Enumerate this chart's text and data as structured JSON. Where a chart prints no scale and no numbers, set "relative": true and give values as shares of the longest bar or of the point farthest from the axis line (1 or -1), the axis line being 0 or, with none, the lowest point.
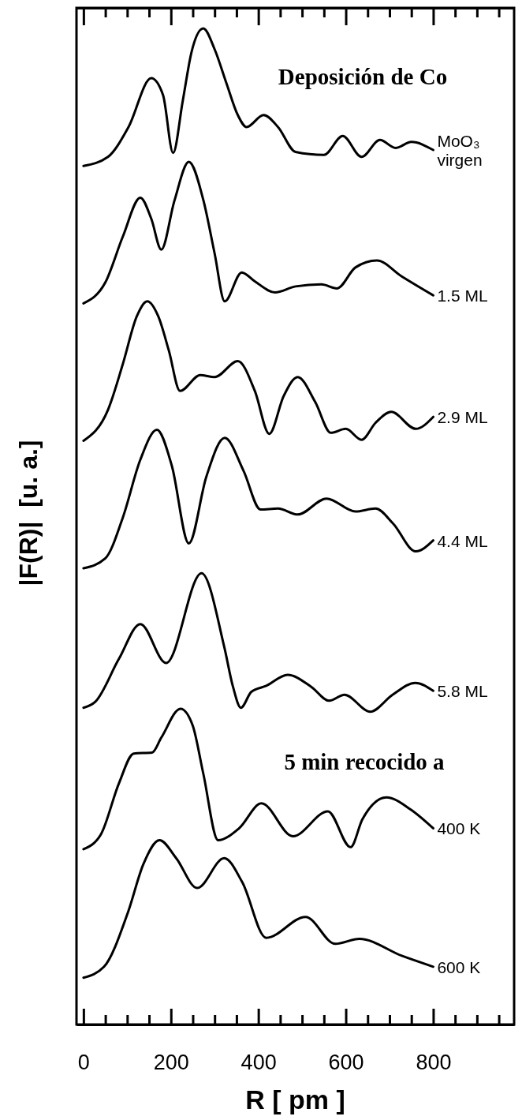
{
  "chart_data": {
    "type": "line",
    "relative": true,
    "xlabel": "R [ pm ]",
    "ylabel": "|F(R)|  [u. a.]",
    "xlim": [
      -16,
      985
    ],
    "xticks": [
      0,
      {
        "value": 50,
        "label": null
      },
      {
        "value": 100,
        "label": null
      },
      {
        "value": 150,
        "label": null
      },
      200,
      {
        "value": 250,
        "label": null
      },
      {
        "value": 300,
        "label": null
      },
      {
        "value": 350,
        "label": null
      },
      400,
      {
        "value": 450,
        "label": null
      },
      {
        "value": 500,
        "label": null
      },
      {
        "value": 550,
        "label": null
      },
      600,
      {
        "value": 650,
        "label": null
      },
      {
        "value": 700,
        "label": null
      },
      {
        "value": 750,
        "label": null
      },
      800,
      {
        "value": 850,
        "label": null
      },
      {
        "value": 900,
        "label": null
      },
      {
        "value": 950,
        "label": null
      }
    ],
    "legend": false,
    "marker": "none",
    "line_style": "solid",
    "grid": false,
    "annotations": [
      "Deposición de Co",
      "5 min recocido a"
    ],
    "series": [
      {
        "name": "MoO₃ virgen",
        "color": "#000000",
        "x": [
          0,
          56,
          103,
          155,
          182,
          205,
          227,
          247,
          274,
          300,
          327,
          353,
          373,
          412,
          445,
          485,
          550,
          593,
          636,
          678,
          714,
          750,
          800
        ],
        "values": [
          0.862,
          0.871,
          0.901,
          0.95,
          0.933,
          0.875,
          0.927,
          0.976,
          1,
          0.979,
          0.945,
          0.913,
          0.901,
          0.913,
          0.901,
          0.876,
          0.873,
          0.892,
          0.871,
          0.888,
          0.88,
          0.886,
          0.878
        ]
      },
      {
        "name": "1.5 ML",
        "color": "#000000",
        "x": [
          0,
          50,
          90,
          130,
          155,
          178,
          208,
          241,
          274,
          300,
          323,
          362,
          392,
          438,
          485,
          544,
          580,
          622,
          671,
          728,
          800
        ],
        "values": [
          0.724,
          0.745,
          0.791,
          0.83,
          0.809,
          0.778,
          0.827,
          0.866,
          0.828,
          0.774,
          0.726,
          0.755,
          0.746,
          0.735,
          0.741,
          0.743,
          0.739,
          0.76,
          0.767,
          0.751,
          0.732
        ]
      },
      {
        "name": "2.9 ML",
        "color": "#000000",
        "x": [
          0,
          56,
          90,
          122,
          146,
          171,
          195,
          221,
          267,
          300,
          353,
          392,
          425,
          458,
          490,
          530,
          566,
          600,
          636,
          668,
          704,
          760,
          800
        ],
        "values": [
          0.586,
          0.617,
          0.663,
          0.711,
          0.726,
          0.711,
          0.677,
          0.636,
          0.652,
          0.65,
          0.666,
          0.636,
          0.593,
          0.631,
          0.65,
          0.625,
          0.594,
          0.598,
          0.587,
          0.604,
          0.615,
          0.598,
          0.61
        ]
      },
      {
        "name": "4.4 ML",
        "color": "#000000",
        "x": [
          0,
          50,
          90,
          130,
          168,
          202,
          241,
          281,
          323,
          366,
          405,
          445,
          490,
          556,
          622,
          668,
          708,
          760,
          800
        ],
        "values": [
          0.458,
          0.468,
          0.509,
          0.567,
          0.597,
          0.561,
          0.483,
          0.55,
          0.589,
          0.556,
          0.517,
          0.518,
          0.512,
          0.528,
          0.515,
          0.518,
          0.503,
          0.475,
          0.486
        ]
      },
      {
        "name": "5.8 ML",
        "color": "#000000",
        "x": [
          0,
          27,
          81,
          130,
          189,
          270,
          322,
          342,
          360,
          384,
          418,
          467,
          521,
          562,
          597,
          656,
          707,
          759,
          800
        ],
        "values": [
          0.318,
          0.324,
          0.367,
          0.402,
          0.363,
          0.453,
          0.379,
          0.339,
          0.318,
          0.334,
          0.34,
          0.351,
          0.339,
          0.325,
          0.331,
          0.314,
          0.331,
          0.343,
          0.335
        ]
      },
      {
        "name": "400 K",
        "color": "#000000",
        "x": [
          0,
          40,
          81,
          115,
          157,
          178,
          222,
          250,
          274,
          308,
          356,
          407,
          479,
          559,
          611,
          638,
          693,
          748,
          800
        ],
        "values": [
          0.176,
          0.191,
          0.242,
          0.272,
          0.273,
          0.288,
          0.317,
          0.3,
          0.252,
          0.185,
          0.197,
          0.222,
          0.189,
          0.214,
          0.178,
          0.206,
          0.228,
          0.216,
          0.197
        ]
      },
      {
        "name": "600 K",
        "color": "#000000",
        "x": [
          0,
          47,
          102,
          137,
          174,
          212,
          260,
          322,
          363,
          418,
          508,
          576,
          631,
          728,
          800
        ],
        "values": [
          0.047,
          0.058,
          0.113,
          0.161,
          0.185,
          0.167,
          0.137,
          0.167,
          0.143,
          0.087,
          0.108,
          0.081,
          0.086,
          0.069,
          0.058
        ]
      }
    ]
  }
}
